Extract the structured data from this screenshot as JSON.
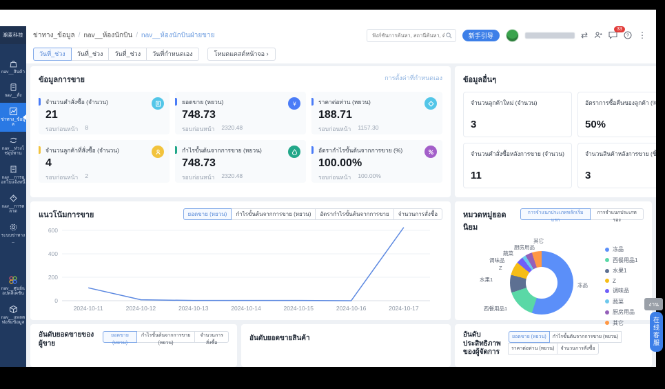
{
  "brand": {
    "logo_text": "潮麦科技"
  },
  "breadcrumb": {
    "items": [
      "ข่าทาง_ข้อมูล",
      "nav__ห้องนักบิน",
      "nav__ห้องนักบินฝ่ายขาย"
    ]
  },
  "topbar": {
    "search_placeholder": "ฟังก์ชันการค้นหา, สถานีค้นหา, ค้นหาเอกสาร",
    "guide_label": "新手引导",
    "message_count": "33"
  },
  "filterbar": {
    "tabs": [
      "วันที่_ช่วง",
      "วันที่_ช่วง",
      "วันที่_ช่วง",
      "วันที่กำหนดเอง"
    ],
    "cast_label": "โหมดแคสต์หน้าจอ ›"
  },
  "sidebar": {
    "items": [
      "nav__สินค้า",
      "nav__สั่ง",
      "ข่าทาง_ข้อมูล",
      "nav__ห่วงโซ่อุปทาน",
      "nav__การออกใบแจ้งหนี้",
      "nav__การตลาด",
      "ระบบข่าทาง_",
      "nav__ศูนย์แอปพลิเคชัน",
      "nav__แพลตฟอร์มข้อมูล"
    ]
  },
  "sales": {
    "title": "ข้อมูลการขาย",
    "settings_link": "การตั้งค่าที่กำหนดเอง",
    "prev_label": "รอบก่อนหน้า",
    "cards": [
      {
        "label": "จำนวนคำสั่งซื้อ (จำนวน)",
        "value": "21",
        "prev": "8",
        "accent": "#4a7cf7",
        "icon": "#53c6e8"
      },
      {
        "label": "ยอดขาย (หยวน)",
        "value": "748.73",
        "prev": "2320.48",
        "accent": "#4a7cf7",
        "icon": "#4a7cf7"
      },
      {
        "label": "ราคาต่อท่าน (หยวน)",
        "value": "188.71",
        "prev": "1157.30",
        "accent": "#4a7cf7",
        "icon": "#53c6e8"
      },
      {
        "label": "จำนวนลูกค้าที่สั่งซื้อ (จำนวน)",
        "value": "4",
        "prev": "2",
        "accent": "#f2c33d",
        "icon": "#f2c33d"
      },
      {
        "label": "กำไรขั้นต้นจากการขาย (หยวน)",
        "value": "748.73",
        "prev": "2320.48",
        "accent": "#22a789",
        "icon": "#22a789"
      },
      {
        "label": "อัตรากำไรขั้นต้นจากการขาย (%)",
        "value": "100.00%",
        "prev": "100.00%",
        "accent": "#4a7cf7",
        "icon": "#a35fc9"
      }
    ]
  },
  "others": {
    "title": "ข้อมูลอื่นๆ",
    "cards": [
      {
        "label": "จำนวนลูกค้าใหม่ (จำนวน)",
        "value": "3"
      },
      {
        "label": "อัตราการซื้อคืนของลูกค้า (%)",
        "value": "50%"
      },
      {
        "label": "จำนวนคำสั่งซื้อหลังการขาย (จำนวน)",
        "value": "11"
      },
      {
        "label": "จำนวนสินค้าหลังการขาย (ชิ้น)",
        "value": "3"
      }
    ]
  },
  "trend": {
    "title": "แนวโน้มการขาย",
    "tabs": [
      "ยอดขาย (หยวน)",
      "กำไรขั้นต้นจากการขาย (หยวน)",
      "อัตรากำไรขั้นต้นจากการขาย",
      "จำนวนการสั่งซื้อ"
    ]
  },
  "categories_panel": {
    "title": "หมวดหมู่ยอดนิยม",
    "tabs": [
      "การจำแนกประเภทหลักเริ่มแรก",
      "การจำแนกประเภทรอง"
    ]
  },
  "rank_seller": {
    "title": "อันดับยอดขายของผู้ขาย",
    "tabs": [
      "ยอดขาย (หยวน)",
      "กำไรขั้นต้นจากการขาย (หยวน)",
      "จำนวนการสั่งซื้อ"
    ]
  },
  "rank_product": {
    "title": "อันดับยอดขายสินค้า"
  },
  "rank_manager": {
    "title": "อันดับประสิทธิภาพของผู้จัดการ",
    "tabs": [
      "ยอดขาย (หยวน)",
      "กำไรขั้นต้นจากการขาย (หยวน)",
      "ราคาต่อท่าน (หยวน)",
      "จำนวนการสั่งซื้อ"
    ]
  },
  "floating": {
    "task_label": "งาน",
    "service_label": "在线客服"
  },
  "chart_data": [
    {
      "type": "line",
      "title": "แนวโน้มการขาย",
      "x": [
        "2024-10-11",
        "2024-10-12",
        "2024-10-13",
        "2024-10-14",
        "2024-10-15",
        "2024-10-16",
        "2024-10-17"
      ],
      "series": [
        {
          "name": "ยอดขาย (หยวน)",
          "values": [
            110,
            8,
            2,
            2,
            2,
            0,
            625
          ]
        }
      ],
      "ylim": [
        0,
        600
      ],
      "yticks": [
        0,
        200,
        400,
        600
      ],
      "color": "#5a87e0",
      "grid": true,
      "legend_position": "none"
    },
    {
      "type": "pie",
      "donut": true,
      "title": "หมวดหมู่ยอดนิยม",
      "categories": [
        "冻品",
        "西餐用品1",
        "水果1",
        "Z",
        "调味品",
        "蔬菜",
        "厨房用品",
        "其它"
      ],
      "values": [
        55,
        15,
        9,
        7,
        3.5,
        2,
        3.5,
        5
      ],
      "colors": [
        "#5B8FF9",
        "#5AD8A6",
        "#5D7092",
        "#F6BD16",
        "#6F5EF9",
        "#6DC8EC",
        "#945FB9",
        "#FF9845"
      ],
      "legend_position": "right"
    }
  ]
}
